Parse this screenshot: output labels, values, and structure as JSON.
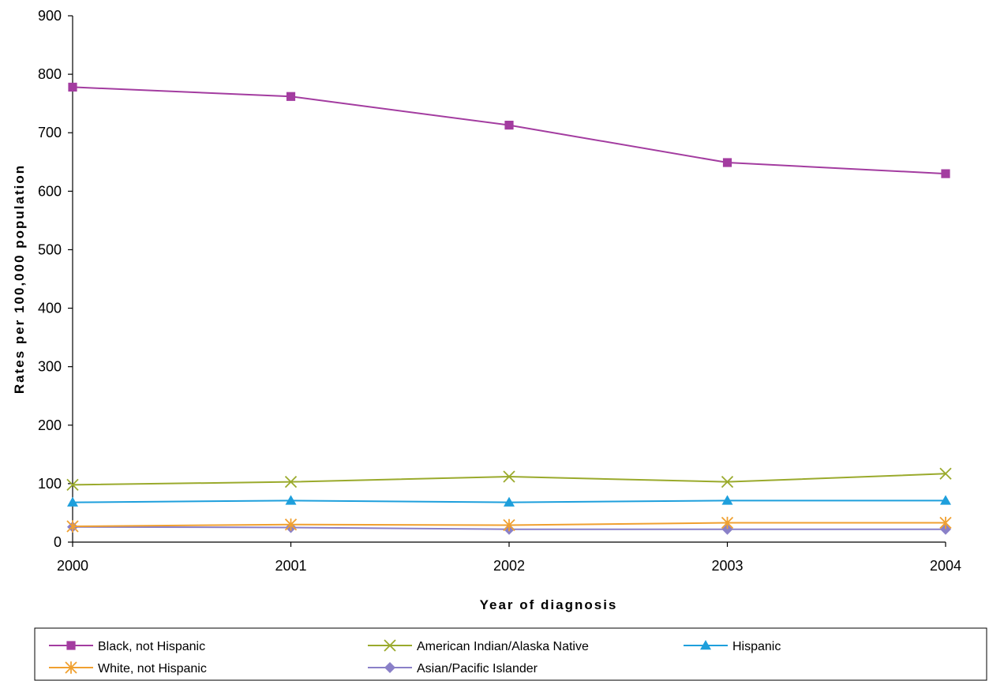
{
  "chart_data": {
    "type": "line",
    "x": [
      "2000",
      "2001",
      "2002",
      "2003",
      "2004"
    ],
    "xlabel": "Year of diagnosis",
    "ylabel": "Rates per 100,000 population",
    "ylim": [
      0,
      900
    ],
    "yticks": [
      "0",
      "100",
      "200",
      "300",
      "400",
      "500",
      "600",
      "700",
      "800",
      "900"
    ],
    "grid": false,
    "legend_position": "bottom",
    "series": [
      {
        "name": "Black, not Hispanic",
        "values": [
          778,
          762,
          713,
          649,
          630
        ],
        "color": "#a33ca0",
        "marker": "square"
      },
      {
        "name": "American Indian/Alaska Native",
        "values": [
          98,
          103,
          112,
          103,
          117
        ],
        "color": "#9aaa2c",
        "marker": "x"
      },
      {
        "name": "Hispanic",
        "values": [
          68,
          71,
          68,
          71,
          71
        ],
        "color": "#1e9fdc",
        "marker": "triangle"
      },
      {
        "name": "White, not Hispanic",
        "values": [
          27,
          30,
          29,
          33,
          33
        ],
        "color": "#f0a030",
        "marker": "star"
      },
      {
        "name": "Asian/Pacific Islander",
        "values": [
          26,
          25,
          22,
          22,
          22
        ],
        "color": "#8a80c8",
        "marker": "diamond"
      }
    ]
  }
}
